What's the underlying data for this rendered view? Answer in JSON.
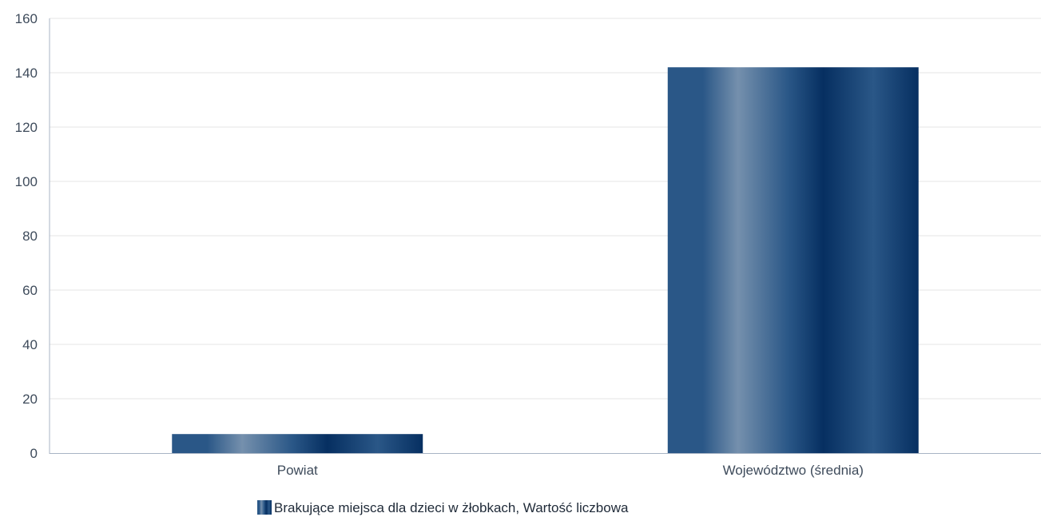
{
  "chart_data": {
    "type": "bar",
    "categories": [
      "Powiat",
      "Województwo (średnia)"
    ],
    "series": [
      {
        "name": "Brakujące miejsca dla dzieci w żłobkach, Wartość liczbowa",
        "values": [
          7,
          142
        ]
      }
    ],
    "title": "",
    "xlabel": "",
    "ylabel": "",
    "ylim": [
      0,
      160
    ],
    "yticks": [
      0,
      20,
      40,
      60,
      80,
      100,
      120,
      140,
      160
    ],
    "grid": true,
    "legend_position": "bottom-center"
  },
  "colors": {
    "bar_dark": "#062f61",
    "bar_mid": "#2a5787",
    "bar_light": "#7590ad",
    "grid": "#e6e6e6",
    "axis": "#a8b4c4",
    "text": "#3e4b5b"
  }
}
